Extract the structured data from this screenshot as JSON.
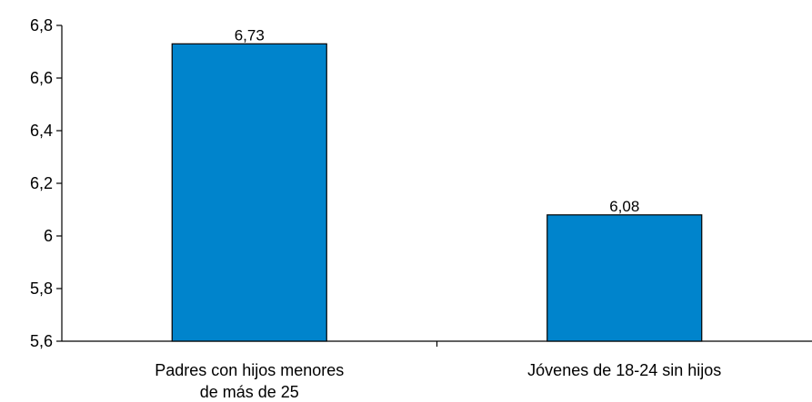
{
  "chart_data": {
    "type": "bar",
    "categories": [
      [
        "Padres con hijos menores",
        "de más de 25"
      ],
      [
        "Jóvenes de 18-24 sin hijos"
      ]
    ],
    "values": [
      6.73,
      6.08
    ],
    "data_labels": [
      "6,73",
      "6,08"
    ],
    "ylim": [
      5.6,
      6.8
    ],
    "yticks": [
      5.6,
      5.8,
      6.0,
      6.2,
      6.4,
      6.6,
      6.8
    ],
    "ytick_labels": [
      "5,6",
      "5,8",
      "6",
      "6,2",
      "6,4",
      "6,6",
      "6,8"
    ],
    "grid": false,
    "bar_color": "#0084CC",
    "bar_edge_color": "#000000"
  }
}
